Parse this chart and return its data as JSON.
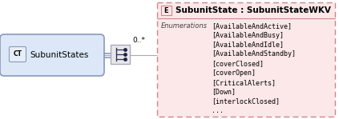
{
  "ct_label": "CT",
  "ct_text": "SubunitStates",
  "ct_box_color": "#dce8f8",
  "ct_box_color2": "#e8eef8",
  "ct_border_color": "#8899bb",
  "connector_bg": "#e8e8ec",
  "connector_border": "#aaaabb",
  "multiplicity": "0..*",
  "element_label": "E",
  "element_title": "SubunitState : SubunitStateWKV",
  "element_bg": "#fce8e8",
  "element_border": "#cc8888",
  "enum_label": "Enumerations",
  "enumerations": [
    "[AvailableAndActive]",
    "[AvailableAndBusy]",
    "[AvailableAndIdle]",
    "[AvailableAndStandby]",
    "[coverClosed]",
    "[coverOpen]",
    "[CriticalAlerts]",
    "[Down]",
    "[interlockClosed]",
    "..."
  ],
  "line_color": "#aaaaaa",
  "text_color": "#000000",
  "enum_label_color": "#444444",
  "dashed_border_color": "#cc8888",
  "background_color": "#ffffff",
  "fig_w": 4.23,
  "fig_h": 1.49,
  "dpi": 100
}
